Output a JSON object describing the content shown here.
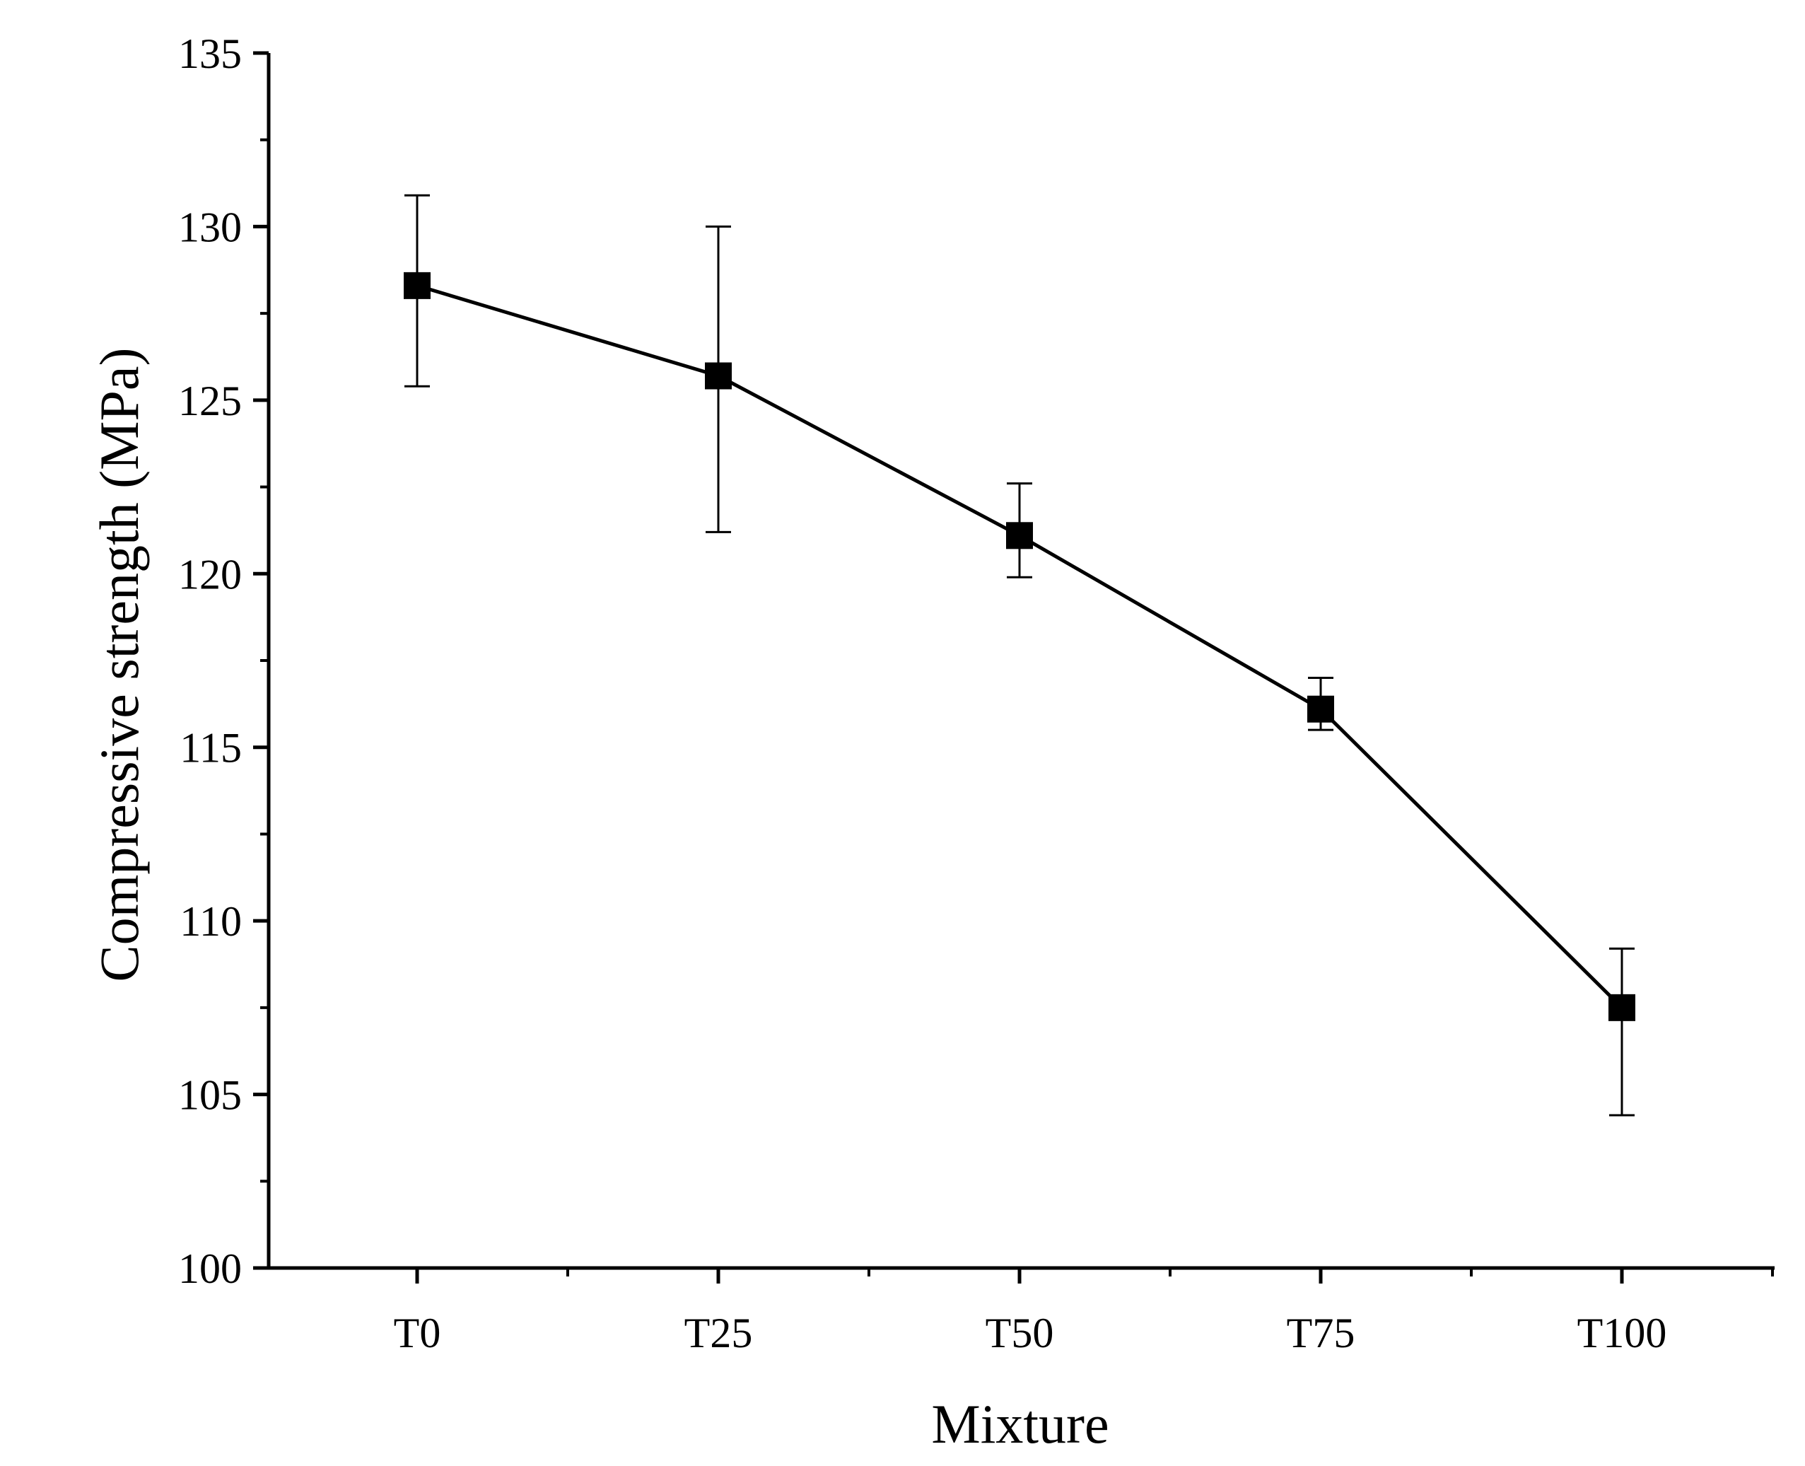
{
  "chart_data": {
    "type": "line",
    "title": "",
    "xlabel": "Mixture",
    "ylabel": "Compressive strength (MPa)",
    "categories": [
      "T0",
      "T25",
      "T50",
      "T75",
      "T100"
    ],
    "ylim": [
      100,
      135
    ],
    "yticks": [
      "100",
      "105",
      "110",
      "115",
      "120",
      "125",
      "130",
      "135"
    ],
    "grid": false,
    "legend": "none",
    "series": [
      {
        "name": "Compressive strength",
        "marker": "square",
        "values": [
          128.3,
          125.7,
          121.1,
          116.1,
          107.5
        ],
        "error_lower": [
          125.4,
          121.2,
          119.9,
          115.5,
          104.4
        ],
        "error_upper": [
          130.9,
          130.0,
          122.6,
          117.0,
          109.2
        ]
      }
    ],
    "colors": {
      "line": "#000000",
      "marker": "#000000",
      "axis": "#000000"
    }
  }
}
